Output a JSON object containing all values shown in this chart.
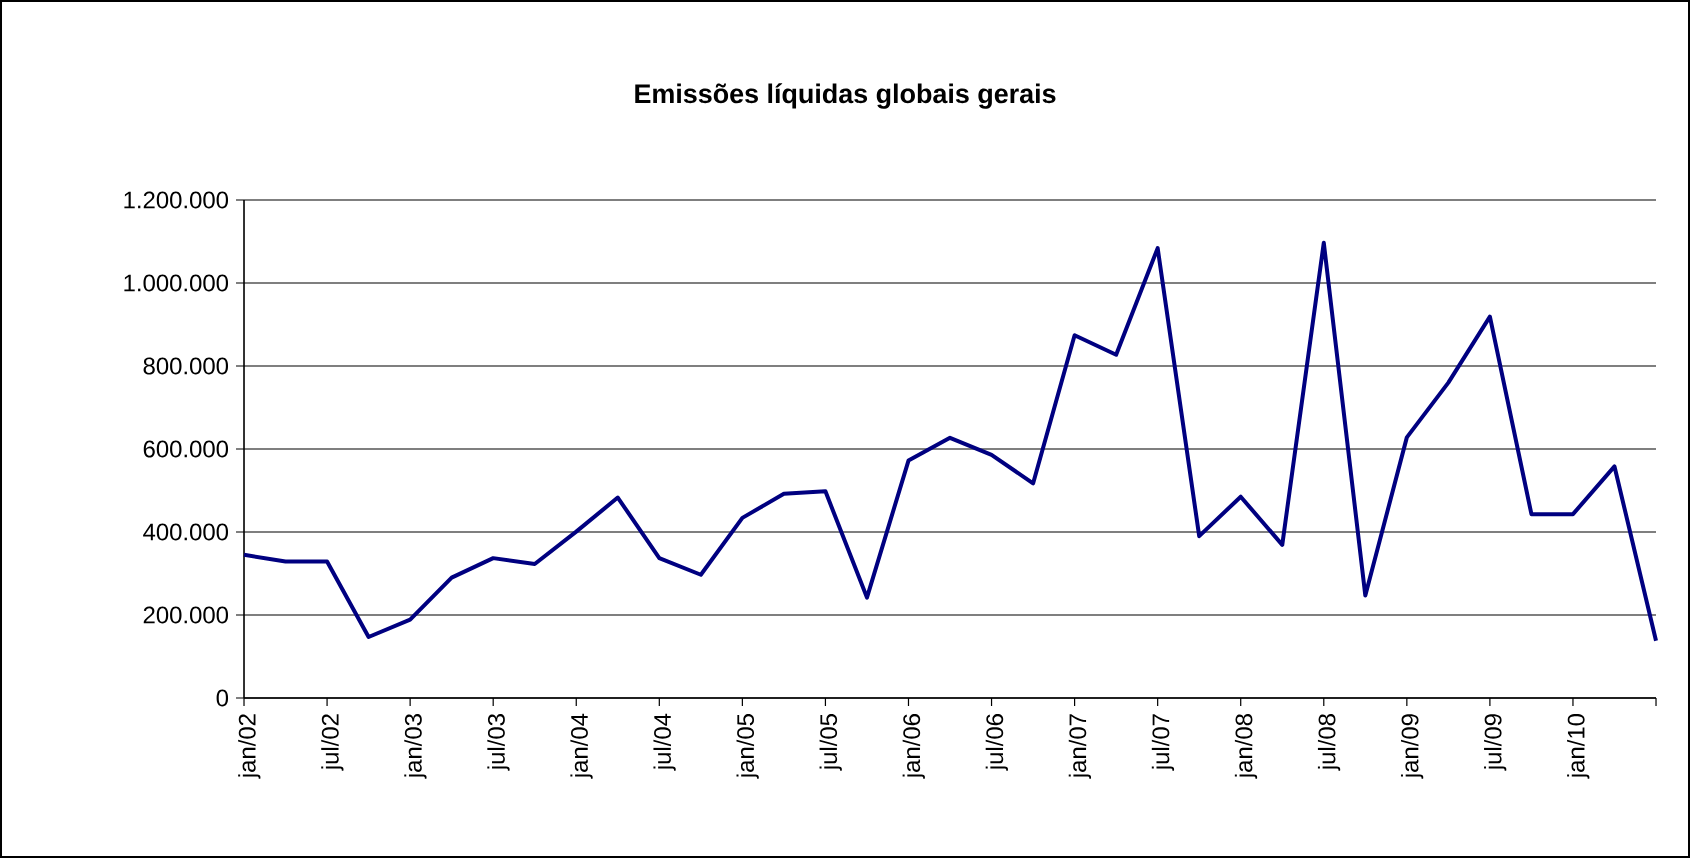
{
  "chart_data": {
    "type": "line",
    "title": "Emissões líquidas globais gerais",
    "categories": [
      "jan/02",
      null,
      "jul/02",
      null,
      "jan/03",
      null,
      "jul/03",
      null,
      "jan/04",
      null,
      "jul/04",
      null,
      "jan/05",
      null,
      "jul/05",
      null,
      "jan/06",
      null,
      "jul/06",
      null,
      "jan/07",
      null,
      "jul/07",
      null,
      "jan/08",
      null,
      "jul/08",
      null,
      "jan/09",
      null,
      "jul/09",
      null,
      "jan/10",
      null,
      null
    ],
    "series": [
      {
        "color": "#000080",
        "values": [
          345000,
          329000,
          329000,
          147000,
          189000,
          290000,
          337000,
          323000,
          401000,
          483000,
          337000,
          297000,
          434000,
          492000,
          498000,
          242000,
          572000,
          627000,
          586000,
          517000,
          874000,
          827000,
          1084000,
          390000,
          485000,
          369000,
          1097000,
          247000,
          628000,
          760000,
          919000,
          443000,
          443000,
          558000,
          138000
        ]
      }
    ],
    "ylim": [
      0,
      1200000
    ],
    "yticks": [
      {
        "value": 0,
        "label": "0"
      },
      {
        "value": 200000,
        "label": "200.000"
      },
      {
        "value": 400000,
        "label": "400.000"
      },
      {
        "value": 600000,
        "label": "600.000"
      },
      {
        "value": 800000,
        "label": "800.000"
      },
      {
        "value": 1000000,
        "label": "1.000.000"
      },
      {
        "value": 1200000,
        "label": "1.200.000"
      }
    ],
    "grid": "y",
    "marker": "none",
    "line_style": "solid"
  }
}
